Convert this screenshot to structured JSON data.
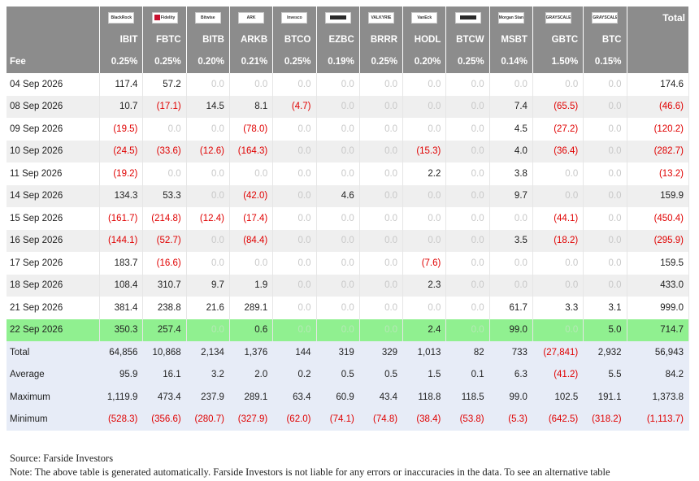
{
  "header": {
    "total_label": "Total",
    "fee_label": "Fee",
    "logo_texts": [
      "BlackRock",
      "Fidelity",
      "Bitwise",
      "ARK",
      "Invesco",
      "",
      "VALKYRIE",
      "VanEck",
      "",
      "Morgan Stanley",
      "GRAYSCALE",
      "GRAYSCALE"
    ]
  },
  "tickers": [
    "IBIT",
    "FBTC",
    "BITB",
    "ARKB",
    "BTCO",
    "EZBC",
    "BRRR",
    "HODL",
    "BTCW",
    "MSBT",
    "GBTC",
    "BTC"
  ],
  "fees": [
    "0.25%",
    "0.25%",
    "0.20%",
    "0.21%",
    "0.25%",
    "0.19%",
    "0.25%",
    "0.20%",
    "0.25%",
    "0.14%",
    "1.50%",
    "0.15%"
  ],
  "rows": [
    {
      "date": "04 Sep 2026",
      "values": [
        "117.4",
        "57.2",
        "0.0",
        "0.0",
        "0.0",
        "0.0",
        "0.0",
        "0.0",
        "0.0",
        "0.0",
        "0.0",
        "0.0"
      ],
      "total": "174.6"
    },
    {
      "date": "08 Sep 2026",
      "values": [
        "10.7",
        "(17.1)",
        "14.5",
        "8.1",
        "(4.7)",
        "0.0",
        "0.0",
        "0.0",
        "0.0",
        "7.4",
        "(65.5)",
        "0.0"
      ],
      "total": "(46.6)"
    },
    {
      "date": "09 Sep 2026",
      "values": [
        "(19.5)",
        "0.0",
        "0.0",
        "(78.0)",
        "0.0",
        "0.0",
        "0.0",
        "0.0",
        "0.0",
        "4.5",
        "(27.2)",
        "0.0"
      ],
      "total": "(120.2)"
    },
    {
      "date": "10 Sep 2026",
      "values": [
        "(24.5)",
        "(33.6)",
        "(12.6)",
        "(164.3)",
        "0.0",
        "0.0",
        "0.0",
        "(15.3)",
        "0.0",
        "4.0",
        "(36.4)",
        "0.0"
      ],
      "total": "(282.7)"
    },
    {
      "date": "11 Sep 2026",
      "values": [
        "(19.2)",
        "0.0",
        "0.0",
        "0.0",
        "0.0",
        "0.0",
        "0.0",
        "2.2",
        "0.0",
        "3.8",
        "0.0",
        "0.0"
      ],
      "total": "(13.2)"
    },
    {
      "date": "14 Sep 2026",
      "values": [
        "134.3",
        "53.3",
        "0.0",
        "(42.0)",
        "0.0",
        "4.6",
        "0.0",
        "0.0",
        "0.0",
        "9.7",
        "0.0",
        "0.0"
      ],
      "total": "159.9"
    },
    {
      "date": "15 Sep 2026",
      "values": [
        "(161.7)",
        "(214.8)",
        "(12.4)",
        "(17.4)",
        "0.0",
        "0.0",
        "0.0",
        "0.0",
        "0.0",
        "0.0",
        "(44.1)",
        "0.0"
      ],
      "total": "(450.4)"
    },
    {
      "date": "16 Sep 2026",
      "values": [
        "(144.1)",
        "(52.7)",
        "0.0",
        "(84.4)",
        "0.0",
        "0.0",
        "0.0",
        "0.0",
        "0.0",
        "3.5",
        "(18.2)",
        "0.0"
      ],
      "total": "(295.9)"
    },
    {
      "date": "17 Sep 2026",
      "values": [
        "183.7",
        "(16.6)",
        "0.0",
        "0.0",
        "0.0",
        "0.0",
        "0.0",
        "(7.6)",
        "0.0",
        "0.0",
        "0.0",
        "0.0"
      ],
      "total": "159.5"
    },
    {
      "date": "18 Sep 2026",
      "values": [
        "108.4",
        "310.7",
        "9.7",
        "1.9",
        "0.0",
        "0.0",
        "0.0",
        "2.3",
        "0.0",
        "0.0",
        "0.0",
        "0.0"
      ],
      "total": "433.0"
    },
    {
      "date": "21 Sep 2026",
      "values": [
        "381.4",
        "238.8",
        "21.6",
        "289.1",
        "0.0",
        "0.0",
        "0.0",
        "0.0",
        "0.0",
        "61.7",
        "3.3",
        "3.1"
      ],
      "total": "999.0"
    },
    {
      "date": "22 Sep 2026",
      "values": [
        "350.3",
        "257.4",
        "0.0",
        "0.6",
        "0.0",
        "0.0",
        "0.0",
        "2.4",
        "0.0",
        "99.0",
        "0.0",
        "5.0"
      ],
      "total": "714.7",
      "highlight": true
    }
  ],
  "summary": [
    {
      "label": "Total",
      "values": [
        "64,856",
        "10,868",
        "2,134",
        "1,376",
        "144",
        "319",
        "329",
        "1,013",
        "82",
        "733",
        "(27,841)",
        "2,932"
      ],
      "total": "56,943"
    },
    {
      "label": "Average",
      "values": [
        "95.9",
        "16.1",
        "3.2",
        "2.0",
        "0.2",
        "0.5",
        "0.5",
        "1.5",
        "0.1",
        "6.3",
        "(41.2)",
        "5.5"
      ],
      "total": "84.2"
    },
    {
      "label": "Maximum",
      "values": [
        "1,119.9",
        "473.4",
        "237.9",
        "289.1",
        "63.4",
        "60.9",
        "43.4",
        "118.8",
        "118.5",
        "99.0",
        "102.5",
        "191.1"
      ],
      "total": "1,373.8"
    },
    {
      "label": "Minimum",
      "values": [
        "(528.3)",
        "(356.6)",
        "(280.7)",
        "(327.9)",
        "(62.0)",
        "(74.1)",
        "(74.8)",
        "(38.4)",
        "(53.8)",
        "(5.3)",
        "(642.5)",
        "(318.2)"
      ],
      "total": "(1,113.7)"
    }
  ],
  "footer": {
    "source": "Source: Farside Investors",
    "note": "Note: The above table is generated automatically. Farside Investors is not liable for any errors or inaccuracies in the data. To see an alternative table"
  },
  "colors": {
    "header_bg": "#8c8c8c",
    "highlight_bg": "#90f090",
    "negative": "#e00000",
    "zero": "#c8c8c8",
    "summary_bg": "#e7ecf7"
  }
}
